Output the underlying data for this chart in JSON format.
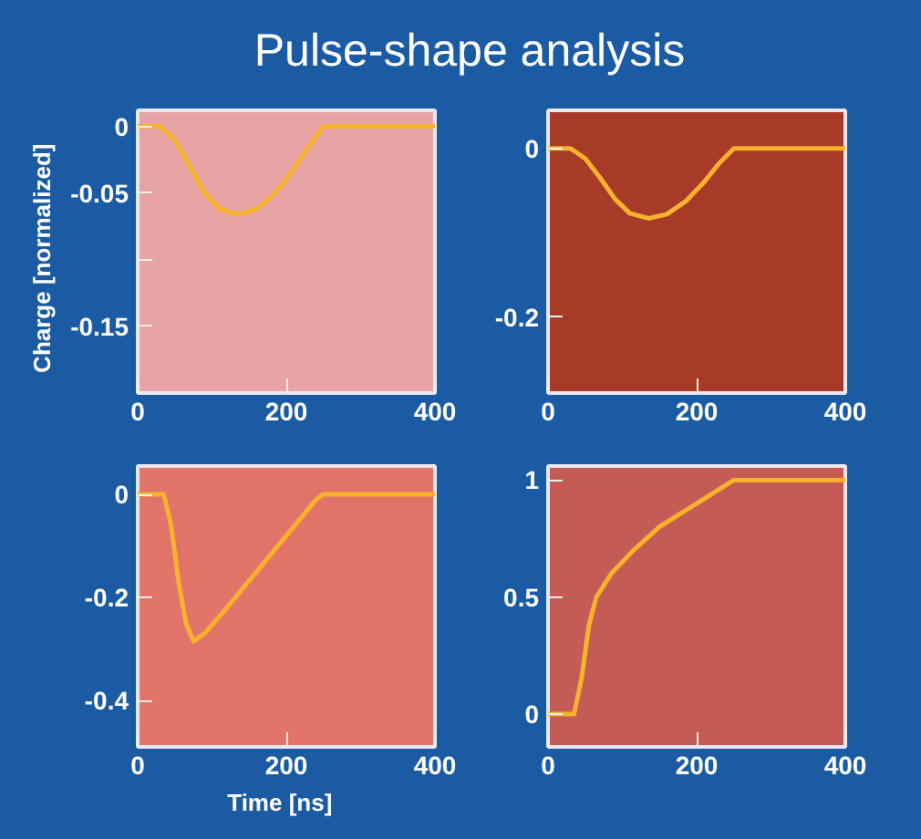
{
  "chart_data": [
    {
      "type": "line",
      "title": "Pulse-shape analysis",
      "ylabel": "Charge   [normalized]",
      "color": "#f7b32b",
      "x": [
        0,
        30,
        50,
        70,
        90,
        110,
        135,
        160,
        185,
        210,
        230,
        250,
        400
      ],
      "values": [
        0,
        0,
        -0.01,
        -0.03,
        -0.05,
        -0.062,
        -0.066,
        -0.062,
        -0.05,
        -0.032,
        -0.015,
        0,
        0
      ],
      "xlim": [
        0,
        400
      ],
      "ylim": [
        -0.2,
        0.012
      ],
      "xticks": [
        0,
        200,
        400
      ],
      "yticks": [
        0,
        -0.05,
        {
          "value": -0.1,
          "label": null
        },
        -0.15
      ]
    },
    {
      "type": "line",
      "color": "#f7b32b",
      "x": [
        0,
        30,
        50,
        70,
        90,
        110,
        135,
        160,
        185,
        210,
        230,
        250,
        400
      ],
      "values": [
        0,
        0,
        -0.012,
        -0.035,
        -0.06,
        -0.077,
        -0.083,
        -0.078,
        -0.063,
        -0.04,
        -0.018,
        0,
        0
      ],
      "xlim": [
        0,
        400
      ],
      "ylim": [
        -0.29,
        0.045
      ],
      "xticks": [
        0,
        200,
        400
      ],
      "yticks": [
        0,
        -0.2
      ]
    },
    {
      "type": "line",
      "xlabel": "Time   [ns]",
      "color": "#f7b32b",
      "x": [
        0,
        35,
        45,
        55,
        65,
        75,
        90,
        120,
        160,
        200,
        240,
        250,
        400
      ],
      "values": [
        0,
        0,
        -0.06,
        -0.17,
        -0.25,
        -0.285,
        -0.27,
        -0.22,
        -0.15,
        -0.08,
        -0.01,
        0,
        0
      ],
      "xlim": [
        0,
        400
      ],
      "ylim": [
        -0.49,
        0.055
      ],
      "xticks": [
        0,
        200,
        400
      ],
      "yticks": [
        0,
        -0.2,
        -0.4
      ]
    },
    {
      "type": "line",
      "color": "#f7b32b",
      "x": [
        0,
        35,
        45,
        55,
        65,
        85,
        115,
        150,
        200,
        250,
        400
      ],
      "values": [
        0,
        0,
        0.15,
        0.38,
        0.5,
        0.6,
        0.7,
        0.8,
        0.9,
        1,
        1
      ],
      "xlim": [
        0,
        400
      ],
      "ylim": [
        -0.14,
        1.06
      ],
      "xticks": [
        0,
        200,
        400
      ],
      "yticks": [
        0,
        0.5,
        1
      ]
    }
  ]
}
